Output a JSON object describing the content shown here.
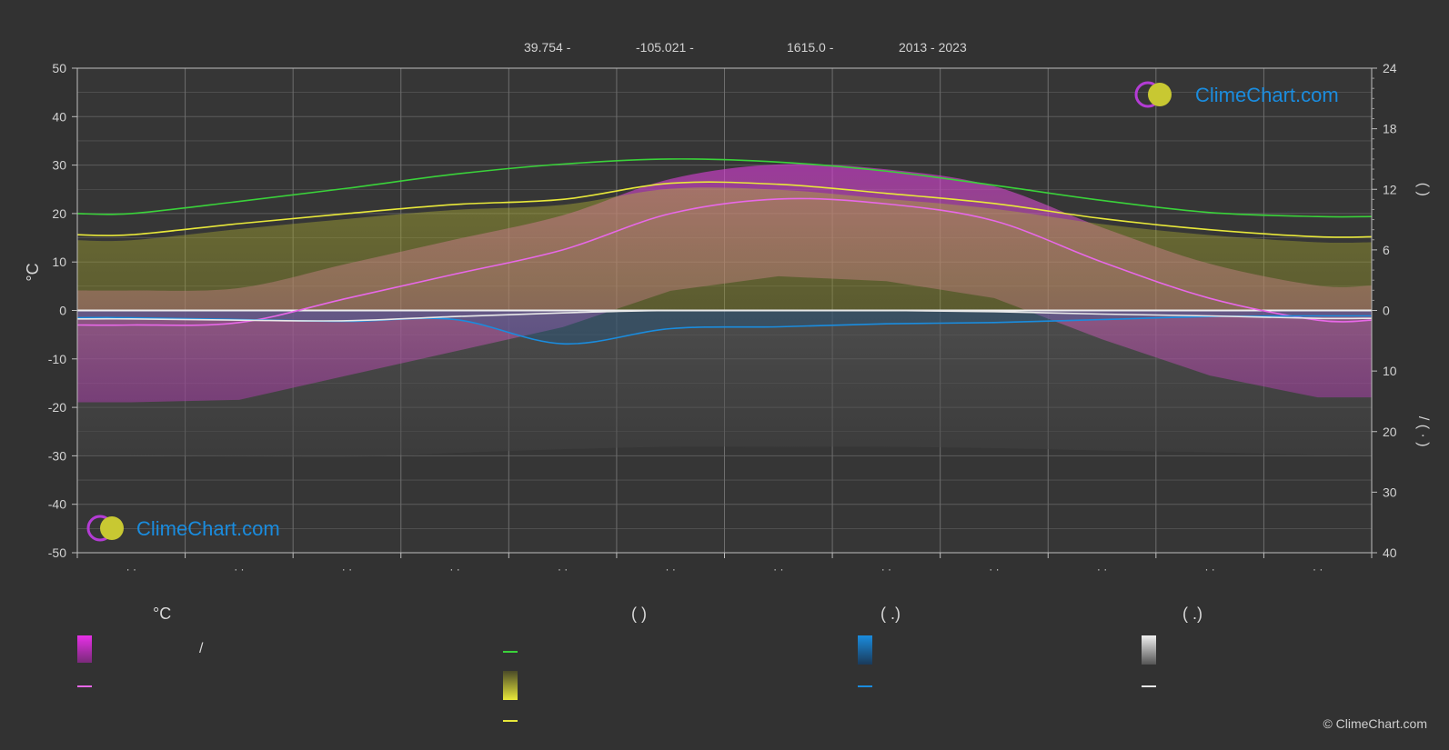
{
  "header": {
    "lat": "39.754 -",
    "lon": "-105.021 -",
    "elev": "1615.0 -",
    "years": "2013 - 2023"
  },
  "logo_text": "ClimeChart.com",
  "copyright": "© ClimeChart.com",
  "chart_data": {
    "type": "area",
    "y_left": {
      "label": "°C",
      "ticks": [
        50,
        40,
        30,
        20,
        10,
        0,
        -10,
        -20,
        -30,
        -40,
        -50
      ],
      "range": [
        -50,
        50
      ]
    },
    "y_right_top": {
      "ticks": [
        24,
        18,
        12,
        6,
        0
      ],
      "range": [
        0,
        24
      ],
      "label": "(   )"
    },
    "y_right_bottom": {
      "ticks": [
        0,
        10,
        20,
        30,
        40
      ],
      "range": [
        0,
        40
      ],
      "label": "/  (  ·  )"
    },
    "x_tick_labels": [
      "· ·",
      "· ·",
      "· ·",
      "· ·",
      "· ·",
      "· ·",
      "· ·",
      "· ·",
      "· ·",
      "· ·",
      "· ·",
      "· ·"
    ],
    "grid": true,
    "months": [
      1,
      2,
      3,
      4,
      5,
      6,
      7,
      8,
      9,
      10,
      11,
      12
    ],
    "series": [
      {
        "values": [
          9.6,
          10.8,
          12.1,
          13.5,
          14.5,
          15.0,
          14.7,
          13.8,
          12.4,
          10.9,
          9.7,
          9.3
        ],
        "color": "#3ad23a",
        "axis": "right_top"
      },
      {
        "values": [
          7.5,
          8.6,
          9.6,
          10.5,
          11.0,
          12.6,
          12.5,
          11.6,
          10.6,
          9.1,
          8.0,
          7.3
        ],
        "color": "#e8e83a",
        "axis": "right_top"
      },
      {
        "values": [
          -3.0,
          -2.5,
          2.5,
          7.5,
          12.5,
          20.0,
          23.0,
          22.0,
          18.5,
          10.0,
          2.5,
          -2.0
        ],
        "color": "#e868e8",
        "axis": "left"
      },
      {
        "values": [
          1.2,
          1.5,
          1.8,
          1.5,
          5.5,
          3.0,
          2.7,
          2.2,
          2.0,
          1.5,
          1.0,
          0.9
        ],
        "color": "#1a8cde",
        "axis": "right_bottom"
      },
      {
        "values": [
          1.4,
          1.6,
          1.7,
          1.0,
          0.4,
          0.0,
          0.0,
          0.0,
          0.2,
          0.6,
          0.9,
          1.3
        ],
        "color": "#e8e8e8",
        "axis": "right_bottom"
      }
    ]
  },
  "legend": {
    "col1": {
      "header": "°C",
      "row1_text": "/"
    },
    "col2": {
      "header": "(          )"
    },
    "col3": {
      "header": "(   .)"
    },
    "col4": {
      "header": "(   .)"
    }
  },
  "colors": {
    "background": "#323232",
    "sunshine": "#3ad23a",
    "daylight": "#e8e83a",
    "temp_mean": "#e868e8",
    "temp_band": "#d53bd5",
    "rain": "#1a8cde",
    "snow": "#e8e8e8",
    "logo_blue": "#1a8cde"
  }
}
